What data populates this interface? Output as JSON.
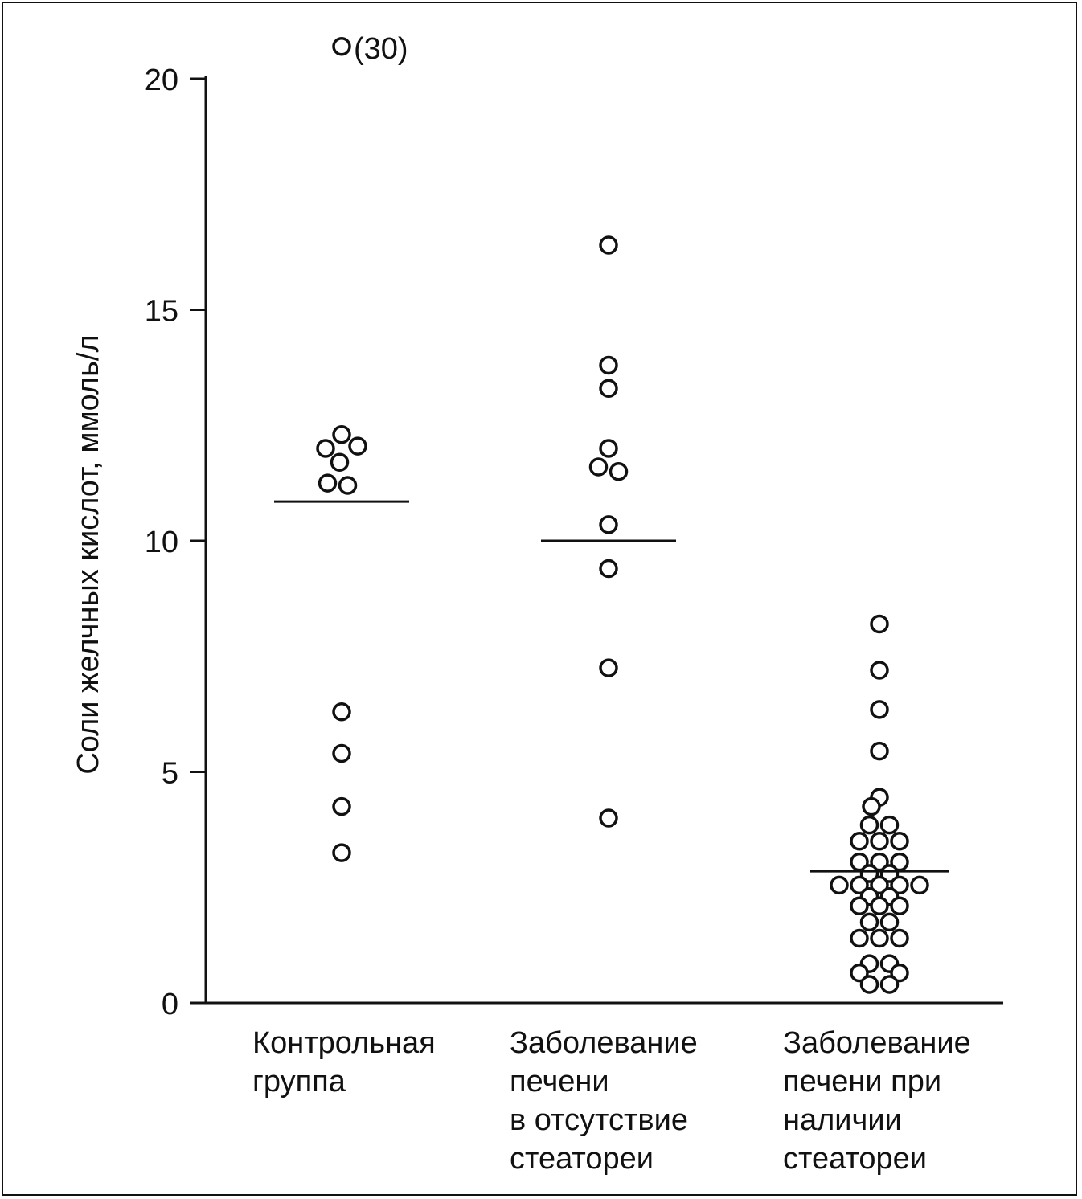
{
  "chart_data": {
    "type": "scatter",
    "ylabel": "Соли желчных кислот, ммоль/л",
    "ylim": [
      0,
      20
    ],
    "yticks": [
      "0",
      "5",
      "10",
      "15",
      "20"
    ],
    "grid": false,
    "categories": [
      [
        "Контрольная",
        "группа"
      ],
      [
        "Заболевание",
        "печени",
        "в отсутствие",
        "стеатореи"
      ],
      [
        "Заболевание",
        "печени при",
        "наличии",
        "стеатореи"
      ]
    ],
    "outlier_label": "(30)",
    "series": [
      {
        "points": [
          {
            "dx": 0,
            "y": 20.7
          },
          {
            "dx": 0,
            "y": 12.3
          },
          {
            "dx": -0.8,
            "y": 12.0
          },
          {
            "dx": 0.8,
            "y": 12.05
          },
          {
            "dx": -0.1,
            "y": 11.7
          },
          {
            "dx": -0.7,
            "y": 11.25
          },
          {
            "dx": 0.3,
            "y": 11.2
          },
          {
            "dx": 0,
            "y": 6.3
          },
          {
            "dx": 0,
            "y": 5.4
          },
          {
            "dx": 0,
            "y": 4.25
          },
          {
            "dx": 0,
            "y": 3.25
          }
        ],
        "mean": 10.85
      },
      {
        "points": [
          {
            "dx": 0,
            "y": 16.4
          },
          {
            "dx": 0,
            "y": 13.8
          },
          {
            "dx": 0,
            "y": 13.3
          },
          {
            "dx": 0,
            "y": 12.0
          },
          {
            "dx": -0.5,
            "y": 11.6
          },
          {
            "dx": 0.5,
            "y": 11.5
          },
          {
            "dx": 0,
            "y": 10.35
          },
          {
            "dx": 0,
            "y": 9.4
          },
          {
            "dx": 0,
            "y": 7.25
          },
          {
            "dx": 0,
            "y": 4.0
          }
        ],
        "mean": 10.0
      },
      {
        "points": [
          {
            "dx": 0,
            "y": 8.2
          },
          {
            "dx": 0,
            "y": 7.2
          },
          {
            "dx": 0,
            "y": 6.35
          },
          {
            "dx": 0,
            "y": 5.45
          },
          {
            "dx": 0,
            "y": 4.45
          },
          {
            "dx": -0.4,
            "y": 4.25
          },
          {
            "dx": -0.5,
            "y": 3.85
          },
          {
            "dx": 0.5,
            "y": 3.85
          },
          {
            "dx": -1.0,
            "y": 3.5
          },
          {
            "dx": 0,
            "y": 3.5
          },
          {
            "dx": 1.0,
            "y": 3.5
          },
          {
            "dx": -1.0,
            "y": 3.05
          },
          {
            "dx": 0,
            "y": 3.05
          },
          {
            "dx": 1.0,
            "y": 3.05
          },
          {
            "dx": -0.5,
            "y": 2.8
          },
          {
            "dx": 0.5,
            "y": 2.8
          },
          {
            "dx": -2.0,
            "y": 2.55
          },
          {
            "dx": -1.0,
            "y": 2.55
          },
          {
            "dx": 0,
            "y": 2.55
          },
          {
            "dx": 1.0,
            "y": 2.55
          },
          {
            "dx": 2.0,
            "y": 2.55
          },
          {
            "dx": -0.5,
            "y": 2.3
          },
          {
            "dx": 0.5,
            "y": 2.3
          },
          {
            "dx": -1.0,
            "y": 2.1
          },
          {
            "dx": 0,
            "y": 2.1
          },
          {
            "dx": 1.0,
            "y": 2.1
          },
          {
            "dx": -0.5,
            "y": 1.75
          },
          {
            "dx": 0.5,
            "y": 1.75
          },
          {
            "dx": -1.0,
            "y": 1.4
          },
          {
            "dx": 0,
            "y": 1.4
          },
          {
            "dx": 1.0,
            "y": 1.4
          },
          {
            "dx": -0.5,
            "y": 0.85
          },
          {
            "dx": 0.5,
            "y": 0.85
          },
          {
            "dx": -1.0,
            "y": 0.65
          },
          {
            "dx": 1.0,
            "y": 0.65
          },
          {
            "dx": -0.5,
            "y": 0.4
          },
          {
            "dx": 0.5,
            "y": 0.4
          }
        ],
        "mean": 2.85
      }
    ]
  },
  "colors": {
    "ink": "#111111",
    "background": "#ffffff"
  }
}
